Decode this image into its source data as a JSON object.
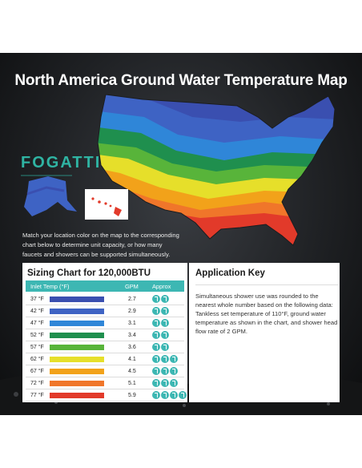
{
  "title": "North America Ground Water Temperature Map",
  "brand": "FOGATTI",
  "instruction": "Match your location color on the map to the corresponding chart below to determine unit capacity, or how many faucets and showers can be supported simultaneously.",
  "sizing_chart": {
    "title": "Sizing Chart for 120,000BTU",
    "headers": {
      "temp": "Inlet Temp (°F)",
      "gpm": "GPM",
      "usage": "Approx Usage"
    },
    "rows": [
      {
        "temp": "37 °F",
        "color": "#3a4fb0",
        "gpm": "2.7",
        "showers": 2
      },
      {
        "temp": "42 °F",
        "color": "#3e63c4",
        "gpm": "2.9",
        "showers": 2
      },
      {
        "temp": "47 °F",
        "color": "#2f86d8",
        "gpm": "3.1",
        "showers": 2
      },
      {
        "temp": "52 °F",
        "color": "#1f8f4e",
        "gpm": "3.4",
        "showers": 2
      },
      {
        "temp": "57 °F",
        "color": "#58b43a",
        "gpm": "3.6",
        "showers": 2
      },
      {
        "temp": "62 °F",
        "color": "#e6df2a",
        "gpm": "4.1",
        "showers": 3
      },
      {
        "temp": "67 °F",
        "color": "#f2a21a",
        "gpm": "4.5",
        "showers": 3
      },
      {
        "temp": "72 °F",
        "color": "#f0762a",
        "gpm": "5.1",
        "showers": 3
      },
      {
        "temp": "77 °F",
        "color": "#e23a2a",
        "gpm": "5.9",
        "showers": 4
      }
    ]
  },
  "application_key": {
    "title": "Application Key",
    "text": "Simultaneous shower use was rounded to the nearest whole number based on the following data: Tankless set temperature of 110°F, ground water temperature as shown in the chart, and shower head flow rate of 2 GPM."
  },
  "colors": {
    "accent": "#3db7b3",
    "brand": "#2fb4a3",
    "panel_background": "#1f2124"
  },
  "icons": [
    "shower-icon"
  ]
}
